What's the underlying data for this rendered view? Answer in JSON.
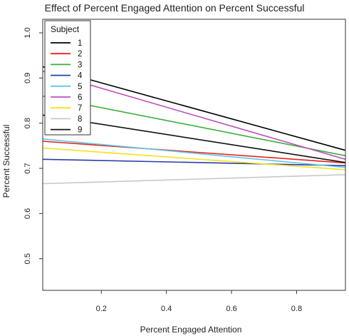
{
  "chart_data": {
    "type": "line",
    "title": "Effect of Percent Engaged Attention on Percent Successful",
    "xlabel": "Percent Engaged Attention",
    "ylabel": "Percent Successful",
    "xlim": [
      0.02,
      0.95
    ],
    "ylim": [
      0.43,
      1.03
    ],
    "xticks": [
      0.2,
      0.4,
      0.6,
      0.8
    ],
    "xtick_labels": [
      "0.2",
      "0.4",
      "0.6",
      "0.8"
    ],
    "yticks": [
      0.5,
      0.6,
      0.7,
      0.8,
      0.9,
      1.0
    ],
    "ytick_labels": [
      "0.5",
      "0.6",
      "0.7",
      "0.8",
      "0.9",
      "1.0"
    ],
    "grid": false,
    "legend": {
      "title": "Subject",
      "position": "top-left"
    },
    "series": [
      {
        "name": "1",
        "color": "#000000",
        "x": [
          0.02,
          0.95
        ],
        "y": [
          0.925,
          0.74
        ]
      },
      {
        "name": "2",
        "color": "#e8221c",
        "x": [
          0.02,
          0.95
        ],
        "y": [
          0.76,
          0.712
        ]
      },
      {
        "name": "3",
        "color": "#3aae3a",
        "x": [
          0.02,
          0.95
        ],
        "y": [
          0.86,
          0.728
        ]
      },
      {
        "name": "4",
        "color": "#2a3ea8",
        "x": [
          0.02,
          0.95
        ],
        "y": [
          0.72,
          0.706
        ]
      },
      {
        "name": "5",
        "color": "#5ec8e8",
        "x": [
          0.02,
          0.95
        ],
        "y": [
          0.765,
          0.702
        ]
      },
      {
        "name": "6",
        "color": "#c050b8",
        "x": [
          0.02,
          0.95
        ],
        "y": [
          0.915,
          0.72
        ]
      },
      {
        "name": "7",
        "color": "#f2e21a",
        "x": [
          0.02,
          0.95
        ],
        "y": [
          0.745,
          0.697
        ]
      },
      {
        "name": "8",
        "color": "#c8c8c8",
        "x": [
          0.02,
          0.95
        ],
        "y": [
          0.666,
          0.686
        ]
      },
      {
        "name": "9",
        "color": "#111111",
        "x": [
          0.02,
          0.95
        ],
        "y": [
          0.818,
          0.713
        ]
      }
    ]
  }
}
